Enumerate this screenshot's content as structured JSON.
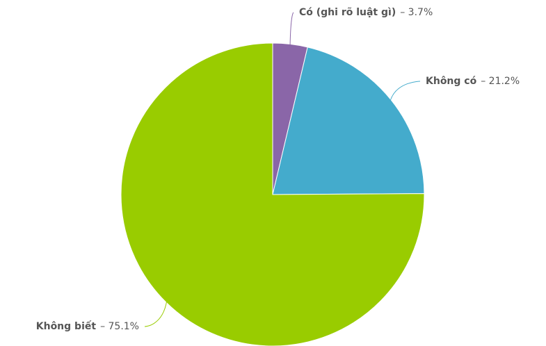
{
  "chart_data": {
    "type": "pie",
    "categories": [
      "Có (ghi rõ luật gì)",
      "Không có",
      "Không biết"
    ],
    "values": [
      3.7,
      21.2,
      75.1
    ],
    "value_labels": [
      "– 3.7%",
      "– 21.2%",
      "– 75.1%"
    ],
    "colors": [
      "#8a66a8",
      "#44abcc",
      "#99cc00"
    ]
  }
}
